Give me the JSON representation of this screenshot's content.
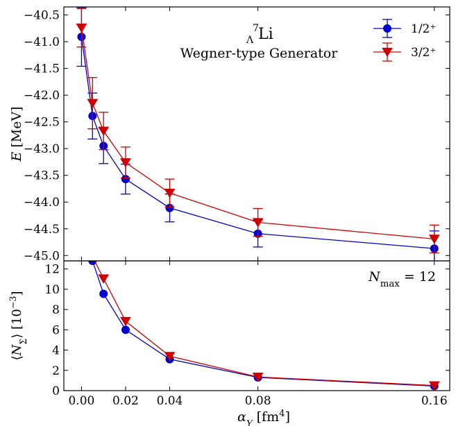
{
  "chart_data": [
    {
      "type": "line",
      "panel": "top",
      "ylabel_parts": [
        "E",
        " [MeV]"
      ],
      "annotation": {
        "sup": "7",
        "sub": "Λ",
        "main": "Li",
        "subtitle": "Wegner-type Generator"
      },
      "ylim": [
        -45.1,
        -40.35
      ],
      "yticks": [
        -40.5,
        -41.0,
        -41.5,
        -42.0,
        -42.5,
        -43.0,
        -43.5,
        -44.0,
        -44.5,
        -45.0
      ],
      "ytick_labels": [
        "−40.5",
        "−41.0",
        "−41.5",
        "−42.0",
        "−42.5",
        "−43.0",
        "−43.5",
        "−44.0",
        "−44.5",
        "−45.0"
      ],
      "legend_position": "top-right",
      "series": [
        {
          "name": "1/2⁺",
          "color": "#0000cc",
          "marker": "circle",
          "x": [
            0.0,
            0.005,
            0.01,
            0.02,
            0.04,
            0.08,
            0.16
          ],
          "y": [
            -40.91,
            -42.39,
            -42.95,
            -43.57,
            -44.11,
            -44.59,
            -44.87
          ],
          "err": [
            0.55,
            0.43,
            0.33,
            0.28,
            0.26,
            0.25,
            0.33
          ]
        },
        {
          "name": "3/2⁺",
          "color": "#cc0000",
          "marker": "triangle-down",
          "x": [
            0.0,
            0.005,
            0.01,
            0.02,
            0.04,
            0.08,
            0.16
          ],
          "y": [
            -40.74,
            -42.15,
            -42.67,
            -43.26,
            -43.83,
            -44.38,
            -44.69
          ],
          "err": [
            0.36,
            0.48,
            0.35,
            0.29,
            0.26,
            0.26,
            0.26
          ]
        }
      ]
    },
    {
      "type": "line",
      "panel": "bottom",
      "ylabel_parts": [
        "⟨N",
        "Σ",
        "⟩ [10",
        "−3",
        "]"
      ],
      "annotation": {
        "main": "N",
        "sub": "max",
        "rest": " = 12"
      },
      "ylim": [
        0,
        12.8
      ],
      "yticks": [
        0,
        2,
        4,
        6,
        8,
        10,
        12
      ],
      "ytick_labels": [
        "0",
        "2",
        "4",
        "6",
        "8",
        "10",
        "12"
      ],
      "xlabel_parts": [
        "α",
        "Y",
        " [fm",
        "4",
        "]"
      ],
      "xlim": [
        -0.008,
        0.167
      ],
      "xticks": [
        0.0,
        0.02,
        0.04,
        0.08,
        0.16
      ],
      "xtick_labels": [
        "0.00",
        "0.02",
        "0.04",
        "0.08",
        "0.16"
      ],
      "series": [
        {
          "name": "1/2⁺",
          "color": "#0000cc",
          "marker": "circle",
          "x": [
            0.005,
            0.01,
            0.02,
            0.04,
            0.08,
            0.16
          ],
          "y": [
            12.8,
            9.55,
            6.0,
            3.1,
            1.3,
            0.45
          ]
        },
        {
          "name": "3/2⁺",
          "color": "#cc0000",
          "marker": "triangle-down",
          "x": [
            0.005,
            0.01,
            0.02,
            0.04,
            0.08,
            0.16
          ],
          "y": [
            13.2,
            11.05,
            6.85,
            3.4,
            1.35,
            0.5
          ]
        }
      ]
    }
  ]
}
